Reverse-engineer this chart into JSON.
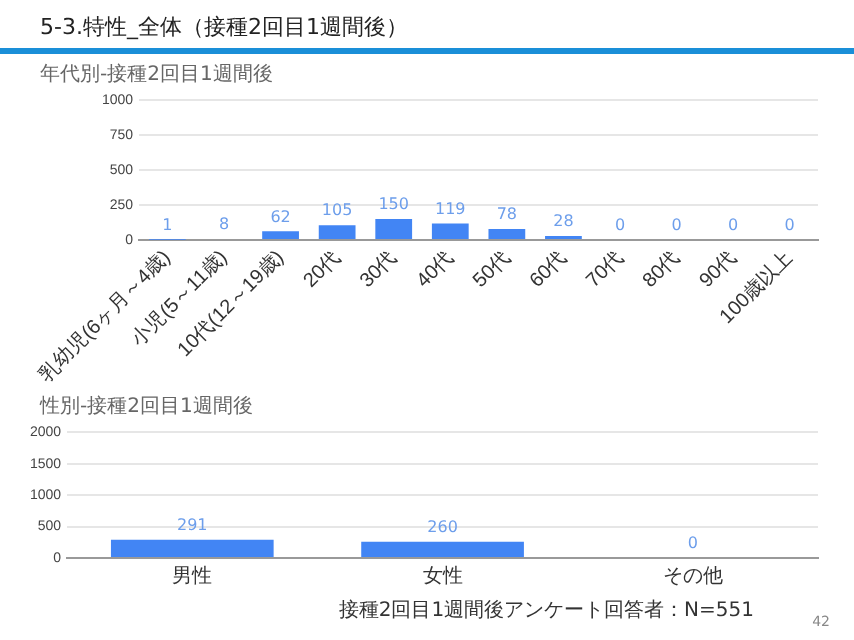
{
  "chart_data": [
    {
      "type": "bar",
      "title": "5-3.特性_全体（接種2回目1週間後）",
      "subtitle": "年代別-接種2回目1週間後",
      "categories": [
        "乳幼児(6ヶ月～4歳)",
        "小児(5～11歳)",
        "10代(12～19歳)",
        "20代",
        "30代",
        "40代",
        "50代",
        "60代",
        "70代",
        "80代",
        "90代",
        "100歳以上"
      ],
      "values": [
        1,
        8,
        62,
        105,
        150,
        119,
        78,
        28,
        0,
        0,
        0,
        0
      ],
      "color": "#4285f4",
      "ylim": [
        0,
        1000
      ],
      "yticks": [
        0,
        250,
        500,
        750,
        1000
      ],
      "grid": "y",
      "data_labels": true
    },
    {
      "type": "bar",
      "title": "性別-接種2回目1週間後",
      "categories": [
        "男性",
        "女性",
        "その他"
      ],
      "values": [
        291,
        260,
        0
      ],
      "color": "#4285f4",
      "ylim": [
        0,
        2000
      ],
      "yticks": [
        0,
        500,
        1000,
        1500,
        2000
      ],
      "grid": "y",
      "data_labels": true,
      "annotations": [
        "接種2回目1週間後アンケート回答者：N=551",
        "42"
      ]
    }
  ]
}
